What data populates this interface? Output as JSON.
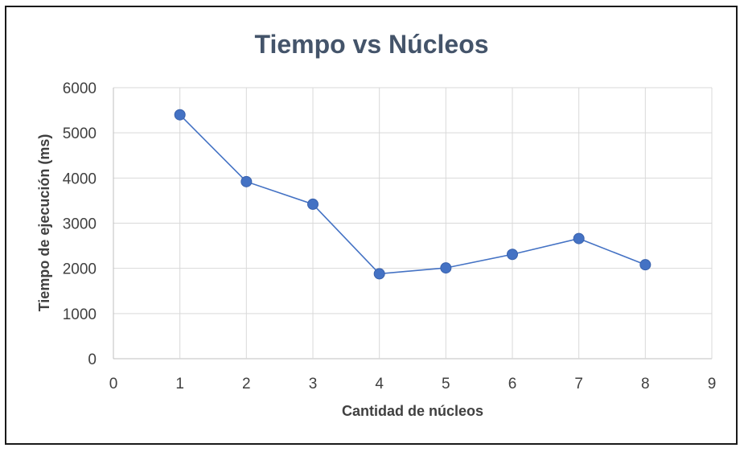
{
  "chart_data": {
    "type": "scatter",
    "title": "Tiempo vs Núcleos",
    "xlabel": "Cantidad de núcleos",
    "ylabel": "Tiempo de ejecución (ms)",
    "xlim": [
      0,
      9
    ],
    "ylim": [
      0,
      6000
    ],
    "x_ticks": [
      "0",
      "1",
      "2",
      "3",
      "4",
      "5",
      "6",
      "7",
      "8",
      "9"
    ],
    "y_ticks": [
      "0",
      "1000",
      "2000",
      "3000",
      "4000",
      "5000",
      "6000"
    ],
    "grid": true,
    "markers_with_lines": true,
    "series": [
      {
        "x": [
          1,
          2,
          3,
          4,
          5,
          6,
          7,
          8
        ],
        "values": [
          5400,
          3920,
          3420,
          1880,
          2010,
          2310,
          2660,
          2080
        ],
        "color": "#4472c4"
      }
    ]
  }
}
